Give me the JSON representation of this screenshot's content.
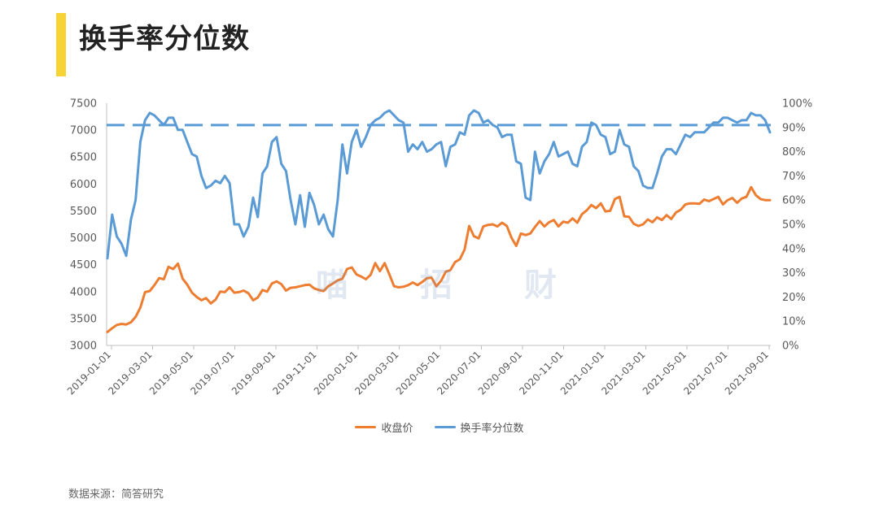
{
  "page": {
    "title": "换手率分位数",
    "source": "数据来源：简答研究",
    "watermark": [
      "喵",
      "招",
      "财"
    ]
  },
  "chart_data": {
    "type": "line",
    "title": "换手率分位数",
    "xlabel": "",
    "ylabel": "",
    "y_left_ticks": [
      "7500",
      "7000",
      "6500",
      "6000",
      "5500",
      "5000",
      "4500",
      "4000",
      "3500",
      "3000"
    ],
    "y_right_ticks": [
      "100%",
      "90%",
      "80%",
      "70%",
      "60%",
      "50%",
      "40%",
      "30%",
      "20%",
      "10%",
      "0%"
    ],
    "ylim_left": [
      3000,
      7500
    ],
    "ylim_right": [
      0,
      100
    ],
    "x_ticks": [
      "2019-01-01",
      "2019-03-01",
      "2019-05-01",
      "2019-07-01",
      "2019-09-01",
      "2019-11-01",
      "2020-01-01",
      "2020-03-01",
      "2020-05-01",
      "2020-07-01",
      "2020-09-01",
      "2020-11-01",
      "2021-01-01",
      "2021-03-01",
      "2021-05-01",
      "2021-07-01",
      "2021-09-01"
    ],
    "grid": false,
    "legend_position": "bottom",
    "reference_line": {
      "axis": "right",
      "value": 91,
      "style": "dashed"
    },
    "series": [
      {
        "name": "收盘价",
        "axis": "left",
        "color": "#ed7d31",
        "values": [
          3250,
          3320,
          3380,
          3400,
          3390,
          3430,
          3530,
          3700,
          3990,
          4010,
          4120,
          4250,
          4230,
          4460,
          4420,
          4520,
          4240,
          4130,
          3980,
          3900,
          3840,
          3880,
          3780,
          3850,
          4000,
          3990,
          4080,
          3980,
          3990,
          4020,
          3970,
          3840,
          3890,
          4030,
          4000,
          4150,
          4190,
          4140,
          4020,
          4070,
          4080,
          4100,
          4120,
          4130,
          4060,
          4030,
          4010,
          4100,
          4150,
          4210,
          4240,
          4420,
          4450,
          4320,
          4280,
          4230,
          4310,
          4530,
          4380,
          4530,
          4320,
          4100,
          4080,
          4090,
          4120,
          4170,
          4120,
          4180,
          4250,
          4260,
          4100,
          4200,
          4370,
          4400,
          4550,
          4600,
          4780,
          5220,
          5030,
          4990,
          5210,
          5240,
          5250,
          5210,
          5280,
          5220,
          5000,
          4850,
          5080,
          5050,
          5080,
          5200,
          5310,
          5210,
          5290,
          5330,
          5210,
          5300,
          5280,
          5360,
          5280,
          5440,
          5510,
          5610,
          5550,
          5640,
          5490,
          5500,
          5720,
          5760,
          5400,
          5390,
          5260,
          5220,
          5250,
          5340,
          5290,
          5380,
          5330,
          5420,
          5350,
          5470,
          5520,
          5620,
          5640,
          5640,
          5630,
          5710,
          5680,
          5720,
          5760,
          5620,
          5700,
          5740,
          5650,
          5730,
          5760,
          5940,
          5790,
          5720,
          5700,
          5700
        ]
      },
      {
        "name": "换手率分位数",
        "axis": "right",
        "color": "#5b9bd5",
        "values": [
          36,
          54,
          45,
          42,
          37,
          52,
          60,
          84,
          93,
          96,
          95,
          93,
          91,
          94,
          94,
          89,
          89,
          84,
          79,
          78,
          70,
          65,
          66,
          68,
          67,
          70,
          67,
          50,
          50,
          45,
          49,
          61,
          53,
          71,
          74,
          84,
          86,
          75,
          72,
          60,
          50,
          62,
          49,
          63,
          58,
          50,
          54,
          48,
          45,
          60,
          83,
          71,
          84,
          89,
          82,
          86,
          91,
          93,
          94,
          96,
          97,
          95,
          93,
          92,
          80,
          83,
          81,
          84,
          80,
          81,
          83,
          84,
          74,
          82,
          83,
          88,
          87,
          95,
          97,
          96,
          92,
          93,
          91,
          90,
          86,
          87,
          87,
          76,
          75,
          61,
          60,
          80,
          71,
          76,
          79,
          84,
          78,
          79,
          80,
          75,
          74,
          82,
          84,
          92,
          91,
          87,
          86,
          79,
          80,
          89,
          83,
          82,
          74,
          72,
          66,
          65,
          65,
          71,
          78,
          81,
          81,
          79,
          83,
          87,
          86,
          88,
          88,
          88,
          90,
          92,
          92,
          94,
          94,
          93,
          92,
          93,
          93,
          96,
          95,
          95,
          93,
          88
        ]
      }
    ]
  }
}
